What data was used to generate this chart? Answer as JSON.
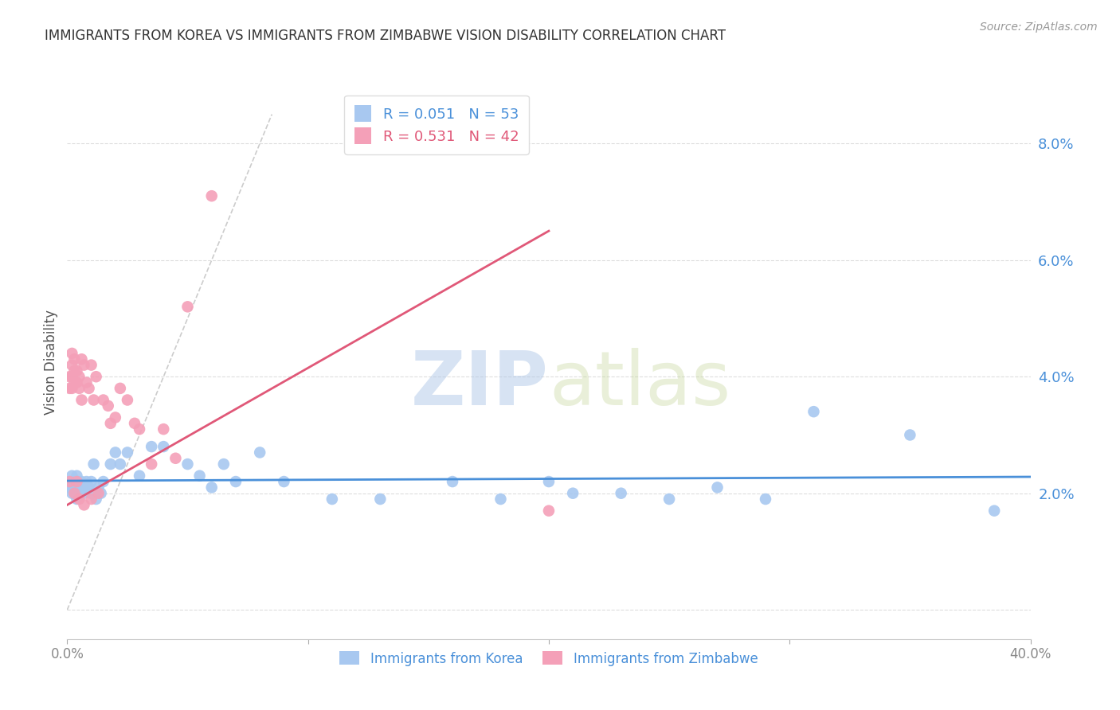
{
  "title": "IMMIGRANTS FROM KOREA VS IMMIGRANTS FROM ZIMBABWE VISION DISABILITY CORRELATION CHART",
  "source": "Source: ZipAtlas.com",
  "ylabel": "Vision Disability",
  "xlim": [
    0.0,
    0.4
  ],
  "ylim": [
    -0.005,
    0.09
  ],
  "yticks": [
    0.0,
    0.02,
    0.04,
    0.06,
    0.08
  ],
  "ytick_labels": [
    "",
    "2.0%",
    "4.0%",
    "6.0%",
    "8.0%"
  ],
  "korea_color": "#a8c8f0",
  "korea_color_dark": "#4a90d9",
  "zimbabwe_color": "#f4a0b8",
  "zimbabwe_color_dark": "#e05878",
  "diagonal_color": "#cccccc",
  "korea_x": [
    0.001,
    0.001,
    0.002,
    0.002,
    0.002,
    0.003,
    0.003,
    0.003,
    0.004,
    0.004,
    0.004,
    0.005,
    0.005,
    0.006,
    0.006,
    0.007,
    0.007,
    0.008,
    0.009,
    0.01,
    0.01,
    0.011,
    0.012,
    0.013,
    0.014,
    0.015,
    0.018,
    0.02,
    0.022,
    0.025,
    0.03,
    0.035,
    0.04,
    0.05,
    0.055,
    0.06,
    0.065,
    0.07,
    0.08,
    0.09,
    0.11,
    0.13,
    0.16,
    0.18,
    0.2,
    0.21,
    0.23,
    0.25,
    0.27,
    0.29,
    0.31,
    0.35,
    0.385
  ],
  "korea_y": [
    0.022,
    0.021,
    0.023,
    0.021,
    0.02,
    0.022,
    0.021,
    0.02,
    0.023,
    0.022,
    0.019,
    0.021,
    0.02,
    0.022,
    0.021,
    0.021,
    0.02,
    0.022,
    0.021,
    0.022,
    0.02,
    0.025,
    0.019,
    0.021,
    0.02,
    0.022,
    0.025,
    0.027,
    0.025,
    0.027,
    0.023,
    0.028,
    0.028,
    0.025,
    0.023,
    0.021,
    0.025,
    0.022,
    0.027,
    0.022,
    0.019,
    0.019,
    0.022,
    0.019,
    0.022,
    0.02,
    0.02,
    0.019,
    0.021,
    0.019,
    0.034,
    0.03,
    0.017
  ],
  "zimbabwe_x": [
    0.001,
    0.001,
    0.001,
    0.002,
    0.002,
    0.002,
    0.002,
    0.003,
    0.003,
    0.003,
    0.003,
    0.004,
    0.004,
    0.004,
    0.005,
    0.005,
    0.005,
    0.006,
    0.006,
    0.007,
    0.007,
    0.008,
    0.009,
    0.01,
    0.01,
    0.011,
    0.012,
    0.013,
    0.015,
    0.017,
    0.018,
    0.02,
    0.022,
    0.025,
    0.028,
    0.03,
    0.035,
    0.04,
    0.045,
    0.05,
    0.06,
    0.2
  ],
  "zimbabwe_y": [
    0.022,
    0.038,
    0.04,
    0.042,
    0.044,
    0.04,
    0.038,
    0.043,
    0.041,
    0.039,
    0.02,
    0.041,
    0.039,
    0.022,
    0.04,
    0.038,
    0.019,
    0.043,
    0.036,
    0.042,
    0.018,
    0.039,
    0.038,
    0.042,
    0.019,
    0.036,
    0.04,
    0.02,
    0.036,
    0.035,
    0.032,
    0.033,
    0.038,
    0.036,
    0.032,
    0.031,
    0.025,
    0.031,
    0.026,
    0.052,
    0.071,
    0.017
  ],
  "watermark_ZIP": "ZIP",
  "watermark_atlas": "atlas",
  "bg_color": "#ffffff",
  "grid_color": "#dddddd",
  "title_fontsize": 12,
  "source_fontsize": 10
}
